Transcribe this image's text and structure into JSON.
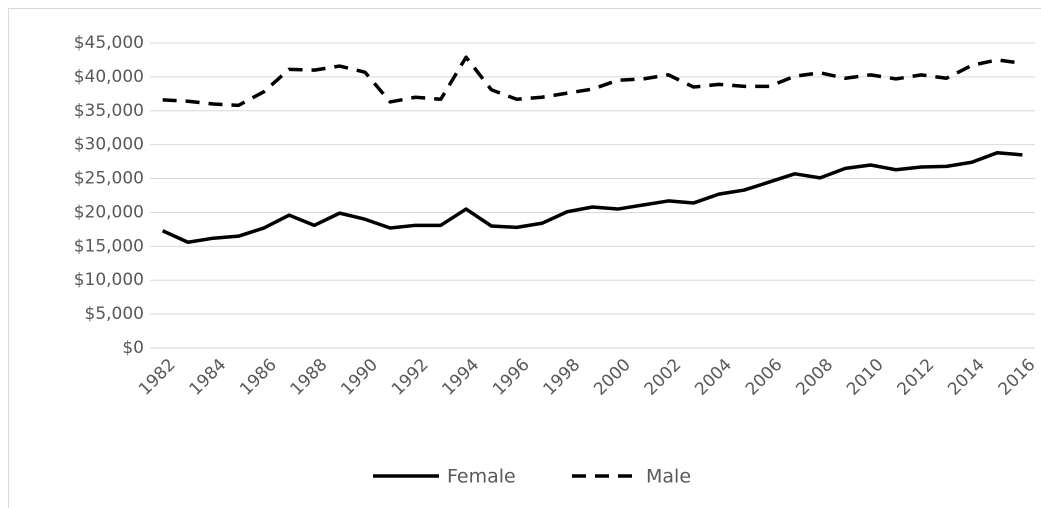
{
  "chart_data": {
    "type": "line",
    "x": [
      1982,
      1983,
      1984,
      1985,
      1986,
      1987,
      1988,
      1989,
      1990,
      1991,
      1992,
      1993,
      1994,
      1995,
      1996,
      1997,
      1998,
      1999,
      2000,
      2001,
      2002,
      2003,
      2004,
      2005,
      2006,
      2007,
      2008,
      2009,
      2010,
      2011,
      2012,
      2013,
      2014,
      2015,
      2016
    ],
    "series": [
      {
        "name": "Female",
        "color": "#000000",
        "dash": false,
        "values": [
          17300,
          15600,
          16200,
          16500,
          17700,
          19600,
          18100,
          19900,
          19000,
          17700,
          18100,
          18100,
          20500,
          18000,
          17800,
          18400,
          20100,
          20800,
          20500,
          21100,
          21700,
          21400,
          22700,
          23300,
          24500,
          25700,
          25100,
          26500,
          27000,
          26300,
          26700,
          26800,
          27400,
          28800,
          28500
        ]
      },
      {
        "name": "Male",
        "color": "#000000",
        "dash": true,
        "values": [
          36600,
          36400,
          36000,
          35800,
          37800,
          41100,
          41000,
          41600,
          40700,
          36300,
          37000,
          36700,
          42900,
          38100,
          36700,
          37000,
          37600,
          38200,
          39500,
          39700,
          40300,
          38500,
          38900,
          38600,
          38600,
          40100,
          40600,
          39800,
          40300,
          39700,
          40300,
          39800,
          41700,
          42500,
          42000
        ]
      }
    ],
    "xlim": [
      1981.5,
      2016.5
    ],
    "xticks": [
      1982,
      1984,
      1986,
      1988,
      1990,
      1992,
      1994,
      1996,
      1998,
      2000,
      2002,
      2004,
      2006,
      2008,
      2010,
      2012,
      2014,
      2016
    ],
    "ylim": [
      0,
      45000
    ],
    "yticks": [
      {
        "value": 0,
        "label": "$0"
      },
      {
        "value": 5000,
        "label": "$5,000"
      },
      {
        "value": 10000,
        "label": "$10,000"
      },
      {
        "value": 15000,
        "label": "$15,000"
      },
      {
        "value": 20000,
        "label": "$20,000"
      },
      {
        "value": 25000,
        "label": "$25,000"
      },
      {
        "value": 30000,
        "label": "$30,000"
      },
      {
        "value": 35000,
        "label": "$35,000"
      },
      {
        "value": 40000,
        "label": "$40,000"
      },
      {
        "value": 45000,
        "label": "$45,000"
      }
    ],
    "grid": true,
    "legend": "bottom"
  }
}
